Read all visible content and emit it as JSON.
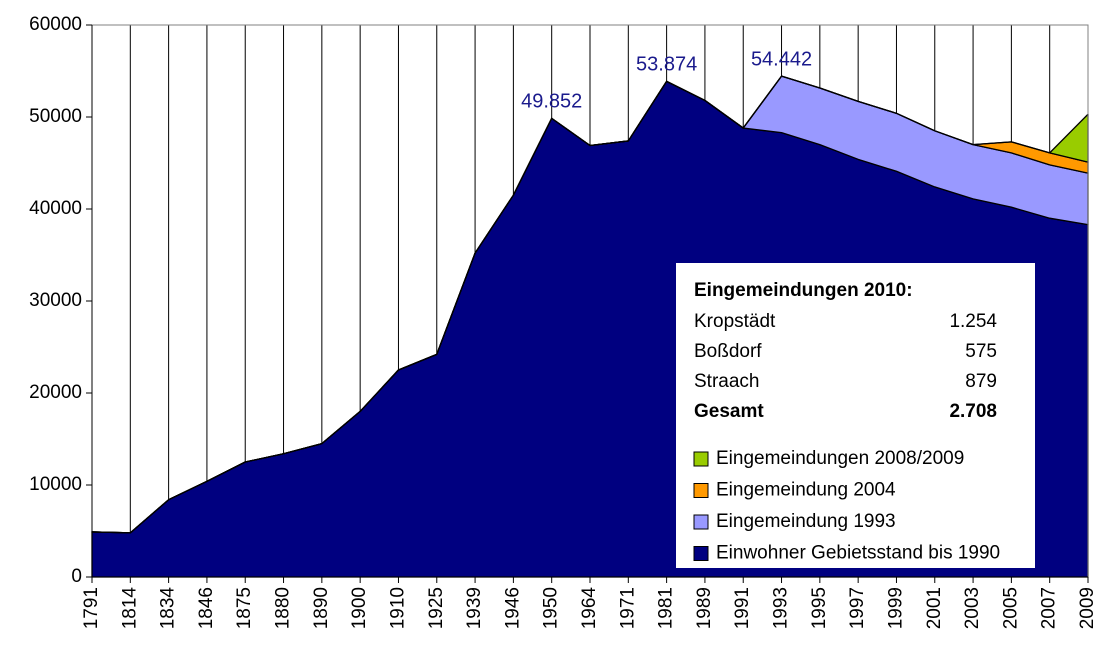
{
  "chart_data": {
    "type": "stacked_area",
    "categories": [
      "1791",
      "1814",
      "1834",
      "1846",
      "1875",
      "1880",
      "1890",
      "1900",
      "1910",
      "1925",
      "1939",
      "1946",
      "1950",
      "1964",
      "1971",
      "1981",
      "1989",
      "1991",
      "1993",
      "1995",
      "1997",
      "1999",
      "2001",
      "2003",
      "2005",
      "2007",
      "2009"
    ],
    "series": [
      {
        "name": "Einwohner Gebietsstand bis 1990",
        "color": "#000080",
        "values": [
          4900,
          4800,
          8400,
          10400,
          12500,
          13400,
          14500,
          18000,
          22500,
          24200,
          35200,
          41500,
          49852,
          46900,
          47400,
          53874,
          51800,
          48800,
          48300,
          47000,
          45400,
          44100,
          42400,
          41100,
          40200,
          39000,
          38300
        ]
      },
      {
        "name": "Eingemeindung 1993",
        "color": "#9999ff",
        "values": [
          0,
          0,
          0,
          0,
          0,
          0,
          0,
          0,
          0,
          0,
          0,
          0,
          0,
          0,
          0,
          0,
          0,
          0,
          6142,
          6150,
          6300,
          6300,
          6100,
          5900,
          5900,
          5800,
          5600
        ]
      },
      {
        "name": "Eingemeindung 2004",
        "color": "#ff9900",
        "values": [
          0,
          0,
          0,
          0,
          0,
          0,
          0,
          0,
          0,
          0,
          0,
          0,
          0,
          0,
          0,
          0,
          0,
          0,
          0,
          0,
          0,
          0,
          0,
          0,
          1200,
          1300,
          1200
        ]
      },
      {
        "name": "Eingemeindungen 2008/2009",
        "color": "#99cc00",
        "values": [
          0,
          0,
          0,
          0,
          0,
          0,
          0,
          0,
          0,
          0,
          0,
          0,
          0,
          0,
          0,
          0,
          0,
          0,
          0,
          0,
          0,
          0,
          0,
          0,
          0,
          0,
          5200
        ]
      }
    ],
    "annotations": [
      {
        "category": "1950",
        "value": 49852,
        "label": "49.852"
      },
      {
        "category": "1981",
        "value": 53874,
        "label": "53.874"
      },
      {
        "category": "1993",
        "value": 54442,
        "label": "54.442"
      }
    ],
    "ylim": [
      0,
      60000
    ],
    "yticks": [
      0,
      10000,
      20000,
      30000,
      40000,
      50000,
      60000
    ],
    "grid": true,
    "info_box": {
      "title": "Eingemeindungen 2010:",
      "rows": [
        [
          "Kropstädt",
          "1.254"
        ],
        [
          "Boßdorf",
          "575"
        ],
        [
          "Straach",
          "879"
        ],
        [
          "Gesamt",
          "2.708"
        ]
      ]
    }
  }
}
